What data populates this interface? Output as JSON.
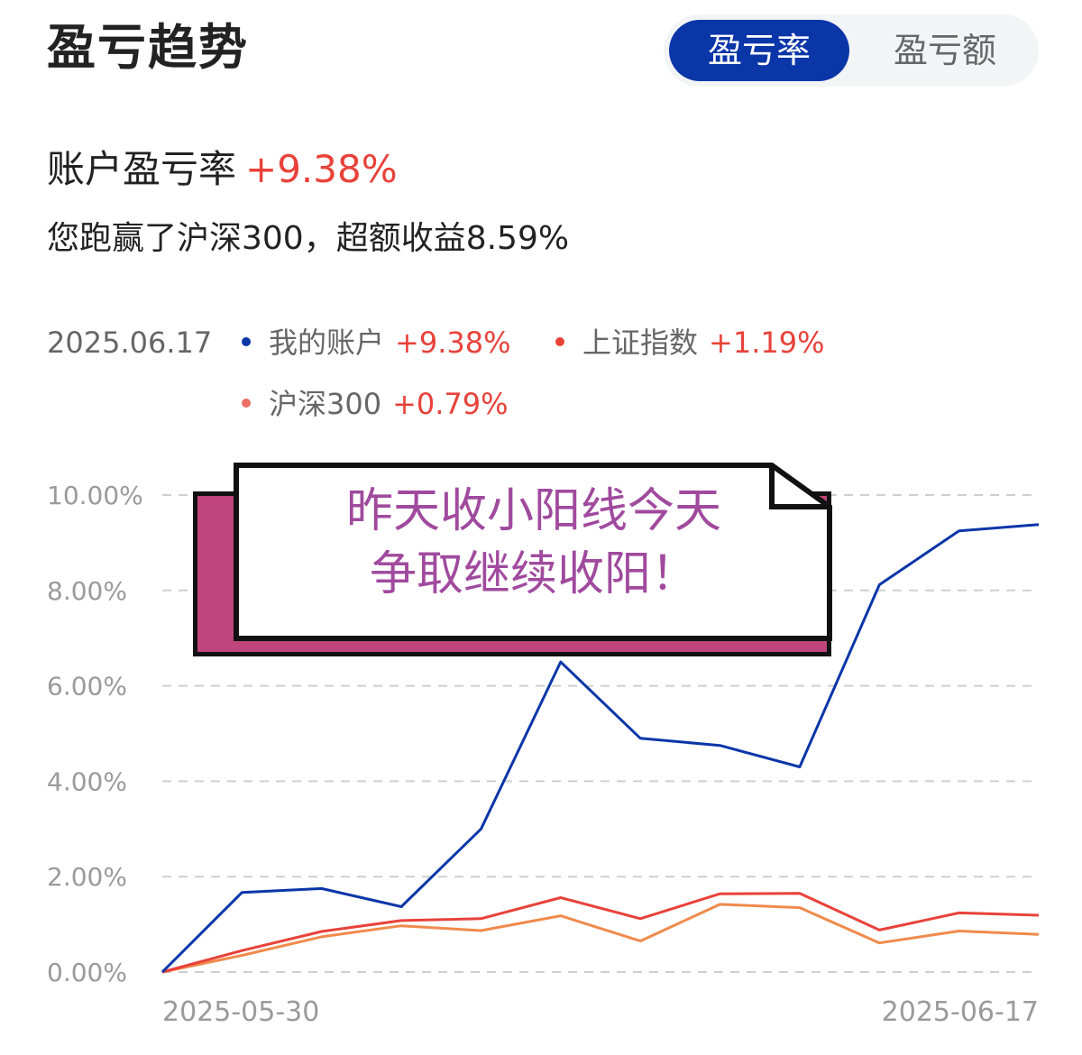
{
  "header": {
    "title": "盈亏趋势",
    "toggle": {
      "active": "盈亏率",
      "inactive": "盈亏额"
    }
  },
  "summary": {
    "label": "账户盈亏率",
    "value": "+9.38%",
    "note": "您跑赢了沪深300，超额收益8.59%"
  },
  "legend": {
    "date": "2025.06.17",
    "items": [
      {
        "name": "我的账户",
        "value": "+9.38%",
        "color": "#0b36a8"
      },
      {
        "name": "上证指数",
        "value": "+1.19%",
        "color": "#e8423a"
      },
      {
        "name": "沪深300",
        "value": "+0.79%",
        "color": "#ec6e64"
      }
    ]
  },
  "callout": {
    "line1": "昨天收小阳线今天",
    "line2": "争取继续收阳！"
  },
  "chart_data": {
    "type": "line",
    "ylim": [
      0,
      10
    ],
    "yticks": [
      "10.00%",
      "8.00%",
      "6.00%",
      "4.00%",
      "2.00%",
      "0.00%"
    ],
    "ytick_values": [
      10,
      8,
      6,
      4,
      2,
      0
    ],
    "x_labels": [
      "2025-05-30",
      "2025-06-17"
    ],
    "grid": true,
    "series": [
      {
        "name": "我的账户",
        "color": "#0b36a8",
        "values": [
          0,
          1.67,
          1.75,
          1.37,
          3.0,
          6.5,
          4.9,
          4.75,
          4.3,
          8.12,
          9.25,
          9.38
        ]
      },
      {
        "name": "上证指数",
        "color": "#e8423a",
        "values": [
          0,
          0.45,
          0.85,
          1.08,
          1.12,
          1.56,
          1.12,
          1.64,
          1.65,
          0.88,
          1.24,
          1.19
        ]
      },
      {
        "name": "沪深300",
        "color": "#f08a4b",
        "values": [
          0,
          0.35,
          0.74,
          0.97,
          0.87,
          1.18,
          0.65,
          1.42,
          1.35,
          0.61,
          0.86,
          0.79
        ]
      }
    ]
  }
}
